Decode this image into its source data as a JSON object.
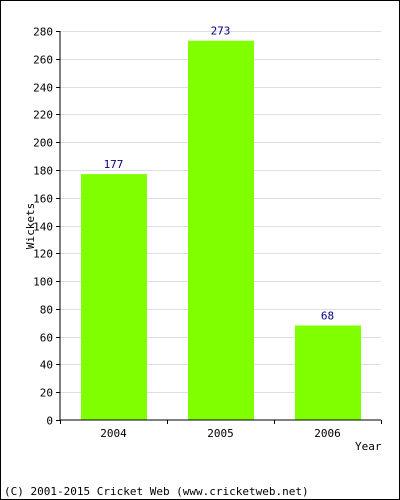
{
  "chart_data": {
    "type": "bar",
    "categories": [
      "2004",
      "2005",
      "2006"
    ],
    "values": [
      177,
      273,
      68
    ],
    "value_labels": [
      "177",
      "273",
      "68"
    ],
    "title": "",
    "xlabel": "Year",
    "ylabel": "Wickets",
    "ylim": [
      0,
      280
    ],
    "yticks": [
      0,
      20,
      40,
      60,
      80,
      100,
      120,
      140,
      160,
      180,
      200,
      220,
      240,
      260,
      280
    ],
    "grid": true,
    "legend": "none",
    "colors": {
      "bar": "#80ff00",
      "grid": "#dddddd",
      "value_label": "#000080",
      "axis": "#000000"
    }
  },
  "footer": {
    "copyright": "(C) 2001-2015 Cricket Web (www.cricketweb.net)"
  }
}
